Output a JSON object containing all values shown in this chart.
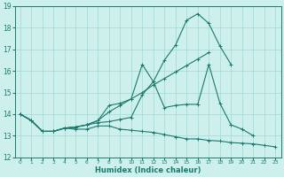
{
  "xlabel": "Humidex (Indice chaleur)",
  "xlim": [
    -0.5,
    23.5
  ],
  "ylim": [
    12,
    19
  ],
  "yticks": [
    12,
    13,
    14,
    15,
    16,
    17,
    18,
    19
  ],
  "xticks": [
    0,
    1,
    2,
    3,
    4,
    5,
    6,
    7,
    8,
    9,
    10,
    11,
    12,
    13,
    14,
    15,
    16,
    17,
    18,
    19,
    20,
    21,
    22,
    23
  ],
  "bg_color": "#cdf0ec",
  "grid_color": "#a0d8d4",
  "line_color": "#1a7a6e",
  "lines": [
    {
      "x": [
        0,
        1,
        2,
        3,
        4,
        5,
        6,
        7,
        8,
        9,
        10,
        11,
        12,
        13,
        14,
        15,
        16,
        17,
        18,
        19,
        20,
        21,
        22,
        23
      ],
      "y": [
        14.0,
        13.7,
        13.2,
        13.2,
        13.35,
        13.3,
        13.3,
        13.45,
        13.45,
        13.3,
        13.25,
        13.2,
        13.15,
        13.05,
        12.95,
        12.85,
        12.85,
        12.78,
        12.75,
        12.68,
        12.65,
        12.62,
        12.55,
        12.48
      ]
    },
    {
      "x": [
        0,
        1,
        2,
        3,
        4,
        5,
        6,
        7,
        8,
        9,
        10,
        11,
        12,
        13,
        14,
        15,
        16,
        17,
        18,
        19,
        20,
        21
      ],
      "y": [
        14.0,
        13.7,
        13.2,
        13.2,
        13.35,
        13.4,
        13.5,
        13.6,
        13.65,
        13.75,
        13.85,
        14.9,
        15.5,
        14.3,
        14.4,
        14.45,
        14.45,
        16.3,
        14.5,
        13.5,
        13.3,
        13.0
      ]
    },
    {
      "x": [
        0,
        1,
        2,
        3,
        4,
        5,
        6,
        7,
        8,
        9,
        10,
        11,
        12,
        13,
        14,
        15,
        16,
        17,
        18,
        19
      ],
      "y": [
        14.0,
        13.7,
        13.2,
        13.2,
        13.35,
        13.4,
        13.5,
        13.7,
        14.4,
        14.5,
        14.7,
        16.3,
        15.5,
        16.5,
        17.2,
        18.35,
        18.65,
        18.2,
        17.15,
        16.3
      ]
    },
    {
      "x": [
        0,
        1,
        2,
        3,
        4,
        5,
        6,
        7,
        8,
        9,
        10,
        11,
        12,
        13,
        14,
        15,
        16,
        17
      ],
      "y": [
        14.0,
        13.7,
        13.2,
        13.2,
        13.35,
        13.4,
        13.5,
        13.7,
        14.1,
        14.4,
        14.7,
        15.0,
        15.35,
        15.65,
        15.95,
        16.25,
        16.55,
        16.85
      ]
    }
  ]
}
